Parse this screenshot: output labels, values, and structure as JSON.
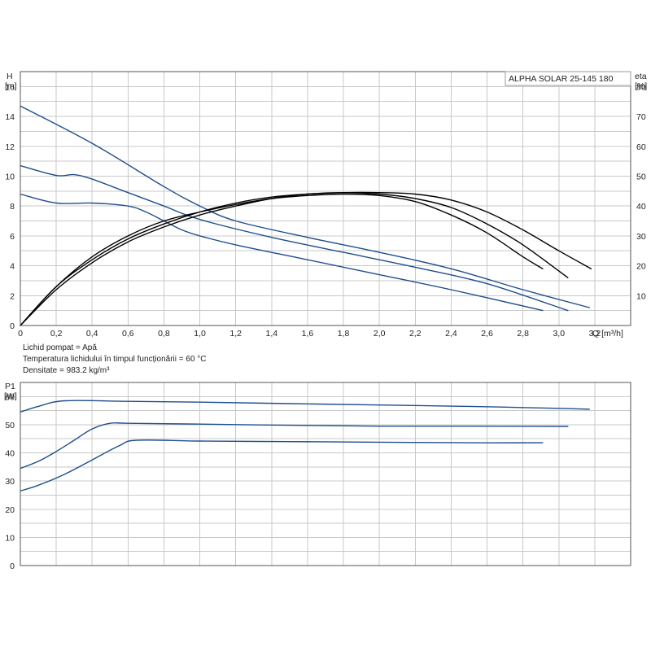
{
  "chart_data": [
    {
      "type": "line",
      "title": "ALPHA SOLAR 25-145  180",
      "xlabel": "Q [m³/h]",
      "ylabel_left": [
        "H",
        "[m]"
      ],
      "ylabel_right": [
        "eta",
        "[%]"
      ],
      "xlim": [
        0,
        3.4
      ],
      "ylim_left": [
        0,
        17
      ],
      "ylim_right": [
        0,
        85
      ],
      "x_ticks": [
        "0",
        "0,2",
        "0,4",
        "0,6",
        "0,8",
        "1,0",
        "1,2",
        "1,4",
        "1,6",
        "1,8",
        "2,0",
        "2,2",
        "2,4",
        "2,6",
        "2,8",
        "3,0",
        "3,2"
      ],
      "y_left_ticks": [
        "0",
        "2",
        "4",
        "6",
        "8",
        "10",
        "12",
        "14",
        "16"
      ],
      "y_right_ticks": [
        "10",
        "20",
        "30",
        "40",
        "50",
        "60",
        "70",
        "80"
      ],
      "grid": true,
      "series": [
        {
          "axis": "left",
          "color": "#1f4e8c",
          "x": [
            0,
            0.4,
            0.8,
            1.0,
            1.2,
            1.6,
            2.0,
            2.4,
            2.8,
            3.17
          ],
          "y": [
            14.7,
            12.2,
            9.3,
            8.0,
            7.0,
            5.9,
            4.9,
            3.8,
            2.4,
            1.2
          ]
        },
        {
          "axis": "left",
          "color": "#1f4e8c",
          "x": [
            0,
            0.2,
            0.3,
            0.4,
            0.6,
            0.8,
            1.0,
            1.4,
            1.8,
            2.2,
            2.6,
            3.05
          ],
          "y": [
            10.7,
            10.05,
            10.1,
            9.8,
            8.9,
            8.0,
            7.1,
            5.9,
            4.9,
            3.9,
            2.8,
            1.0
          ]
        },
        {
          "axis": "left",
          "color": "#1f4e8c",
          "x": [
            0,
            0.2,
            0.4,
            0.6,
            0.7,
            0.8,
            0.9,
            1.0,
            1.2,
            1.6,
            2.0,
            2.4,
            2.91
          ],
          "y": [
            8.8,
            8.2,
            8.2,
            8.0,
            7.6,
            7.0,
            6.4,
            6.0,
            5.4,
            4.4,
            3.4,
            2.4,
            1.0
          ]
        },
        {
          "axis": "right",
          "color": "#000000",
          "x": [
            0,
            0.2,
            0.4,
            0.6,
            0.8,
            1.0,
            1.2,
            1.4,
            1.6,
            1.8,
            2.0,
            2.2,
            2.4,
            2.6,
            2.8,
            3.0,
            3.18
          ],
          "y": [
            0,
            13,
            22,
            29,
            34,
            38,
            41,
            43,
            44,
            44.5,
            44.5,
            44,
            42,
            38,
            32,
            25,
            19
          ]
        },
        {
          "axis": "right",
          "color": "#000000",
          "x": [
            0,
            0.2,
            0.4,
            0.6,
            0.8,
            1.0,
            1.2,
            1.4,
            1.6,
            1.8,
            2.0,
            2.2,
            2.4,
            2.6,
            2.8,
            3.05
          ],
          "y": [
            0,
            12,
            21,
            28,
            33,
            37,
            40,
            42.5,
            44,
            44.5,
            44,
            42.5,
            39.5,
            34,
            27,
            16
          ]
        },
        {
          "axis": "right",
          "color": "#000000",
          "x": [
            0,
            0.2,
            0.4,
            0.6,
            0.8,
            1.0,
            1.2,
            1.4,
            1.6,
            1.8,
            2.0,
            2.2,
            2.4,
            2.6,
            2.8,
            2.91
          ],
          "y": [
            0,
            13,
            23,
            30,
            35,
            38,
            40.5,
            42.5,
            43.5,
            44,
            43.5,
            41.5,
            37,
            31,
            23,
            19
          ]
        }
      ]
    },
    {
      "type": "line",
      "title": "",
      "xlabel": "",
      "ylabel": [
        "P1",
        "[W]"
      ],
      "xlim": [
        0,
        3.4
      ],
      "ylim": [
        0,
        65
      ],
      "y_ticks": [
        "0",
        "10",
        "20",
        "30",
        "40",
        "50",
        "60"
      ],
      "grid": true,
      "series": [
        {
          "color": "#1f4e8c",
          "x": [
            0,
            0.1,
            0.25,
            0.6,
            1.0,
            1.5,
            2.0,
            2.5,
            3.0,
            3.17
          ],
          "y": [
            54.5,
            56.5,
            58.5,
            58.3,
            58.0,
            57.5,
            57.0,
            56.5,
            55.8,
            55.5
          ]
        },
        {
          "color": "#1f4e8c",
          "x": [
            0,
            0.1,
            0.2,
            0.3,
            0.4,
            0.5,
            0.6,
            1.0,
            1.5,
            2.0,
            2.5,
            3.05
          ],
          "y": [
            34.5,
            37,
            40.5,
            44.5,
            48.5,
            50.5,
            50.5,
            50.2,
            49.8,
            49.5,
            49.5,
            49.4
          ]
        },
        {
          "color": "#1f4e8c",
          "x": [
            0,
            0.1,
            0.25,
            0.4,
            0.55,
            0.65,
            1.0,
            1.5,
            2.0,
            2.5,
            2.91
          ],
          "y": [
            26.5,
            28.5,
            32.5,
            37.5,
            42.5,
            44.5,
            44.2,
            44.0,
            43.8,
            43.6,
            43.6
          ]
        }
      ]
    }
  ],
  "notes": {
    "line1": "Lichid pompat = Apă",
    "line2": "Temperatura lichidului în timpul funcționării = 60 °C",
    "line3": "Densitate = 983.2 kg/m³"
  }
}
